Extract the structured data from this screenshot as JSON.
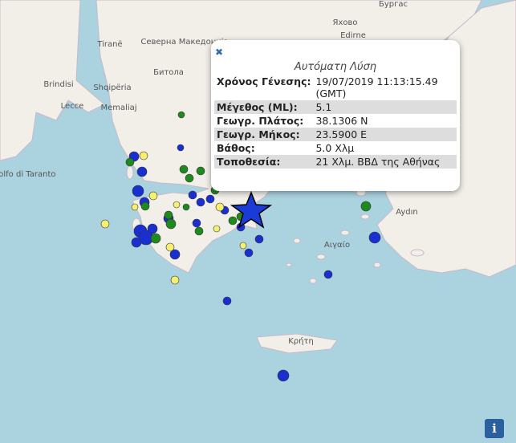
{
  "map_labels": [
    "Tiranë",
    "Shqipëria",
    "Северна Македонија",
    "Битола",
    "Memaliaj",
    "Brindisi",
    "Lecce",
    "Golfo di Taranto",
    "Яхово",
    "Бургас",
    "Edirne",
    "Aydın",
    "Αιγαίο",
    "Κρήτη"
  ],
  "popup": {
    "close": "✖",
    "title": "Αυτόματη Λύση",
    "rows": [
      [
        "Χρόνος Γένεσης:",
        "19/07/2019 11:13:15.49 (GMT)"
      ],
      [
        "Μέγεθος (ML):",
        "5.1"
      ],
      [
        "Γεωγρ. Πλάτος:",
        "38.1306 N"
      ],
      [
        "Γεωγρ. Μήκος:",
        "23.5900 E"
      ],
      [
        "Βάθος:",
        "5.0 Χλμ"
      ],
      [
        "Τοποθεσία:",
        "21 Χλμ. ΒΒΔ της Αθήνας"
      ]
    ]
  },
  "info_button": "i"
}
